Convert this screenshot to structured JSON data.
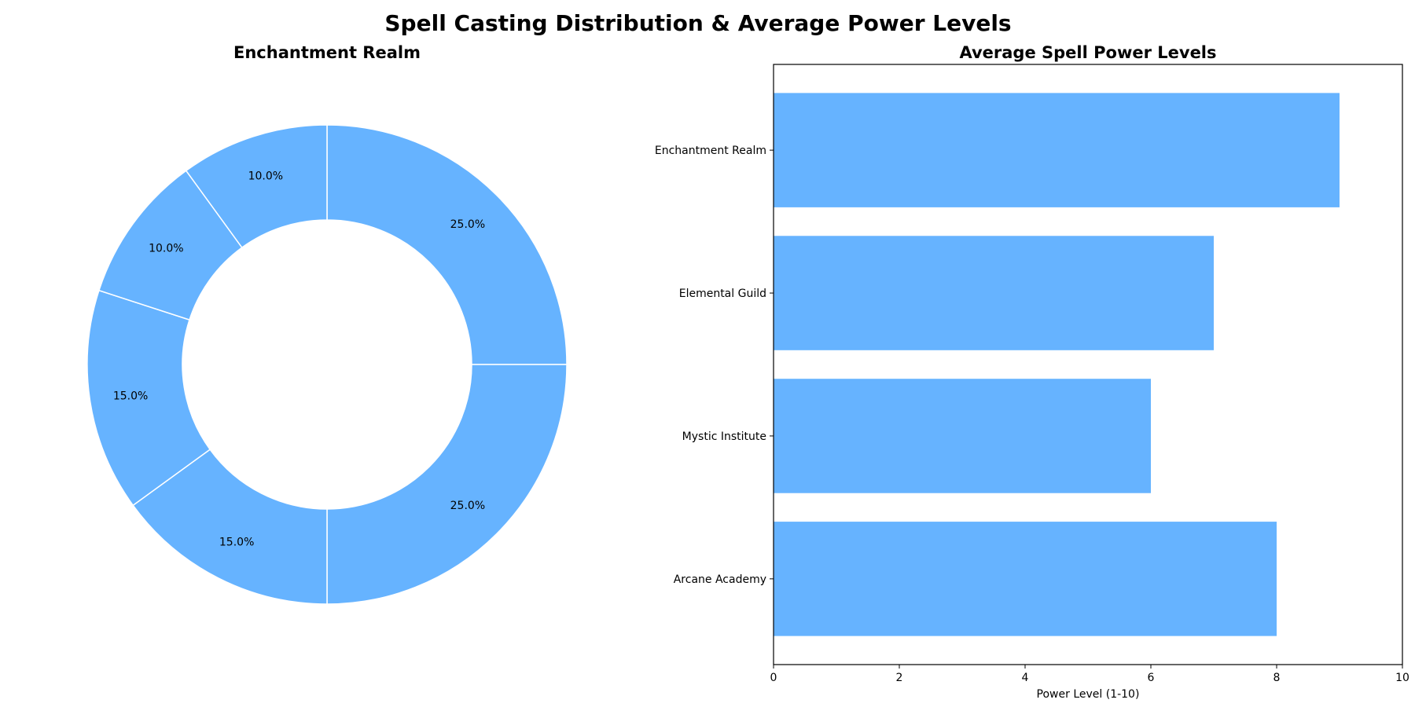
{
  "figure": {
    "title": "Spell Casting Distribution & Average Power Levels"
  },
  "colors": {
    "slice": "#66b3ff",
    "bar": "#66b3ff",
    "edge": "#ffffff",
    "axis": "#000000"
  },
  "chart_data": [
    {
      "type": "pie",
      "title": "Enchantment Realm",
      "donut": true,
      "start_angle_deg": 90,
      "direction": "clockwise",
      "slices": [
        {
          "label": "25.0%",
          "value": 25.0
        },
        {
          "label": "25.0%",
          "value": 25.0
        },
        {
          "label": "15.0%",
          "value": 15.0
        },
        {
          "label": "15.0%",
          "value": 15.0
        },
        {
          "label": "10.0%",
          "value": 10.0
        },
        {
          "label": "10.0%",
          "value": 10.0
        }
      ]
    },
    {
      "type": "bar",
      "orientation": "horizontal",
      "title": "Average Spell Power Levels",
      "categories": [
        "Arcane Academy",
        "Mystic Institute",
        "Elemental Guild",
        "Enchantment Realm"
      ],
      "values": [
        8,
        6,
        7,
        9
      ],
      "xlabel": "Power Level (1-10)",
      "ylabel": "",
      "xlim": [
        0,
        10
      ],
      "xticks": [
        "0",
        "2",
        "4",
        "6",
        "8",
        "10"
      ],
      "grid": false
    }
  ]
}
